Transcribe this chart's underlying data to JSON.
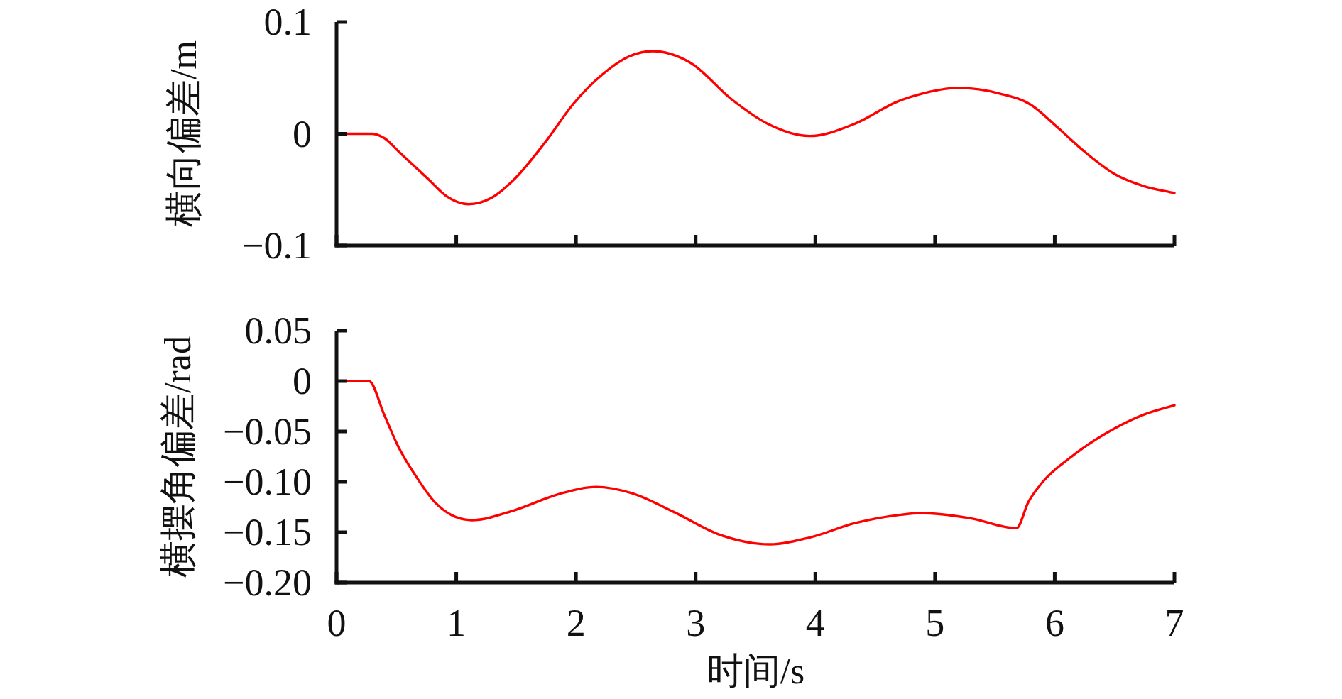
{
  "chart_data": [
    {
      "type": "line",
      "x": [
        0,
        0.3,
        0.4,
        0.52,
        0.77,
        0.92,
        1.1,
        1.3,
        1.5,
        1.74,
        1.98,
        2.22,
        2.44,
        2.64,
        2.95,
        3.31,
        3.6,
        3.95,
        4.33,
        4.69,
        4.86,
        5.2,
        5.54,
        5.8,
        6.02,
        6.26,
        6.5,
        6.75,
        7
      ],
      "series": [
        {
          "color": "#ff0000",
          "values": [
            0,
            0,
            -0.004,
            -0.016,
            -0.041,
            -0.056,
            -0.063,
            -0.057,
            -0.039,
            -0.008,
            0.027,
            0.053,
            0.069,
            0.074,
            0.064,
            0.03,
            0.009,
            -0.002,
            0.009,
            0.029,
            0.035,
            0.041,
            0.036,
            0.026,
            0.006,
            -0.017,
            -0.036,
            -0.047,
            -0.053
          ]
        }
      ],
      "ylabel": "横向偏差/m",
      "xlim": [
        0,
        7
      ],
      "ylim": [
        -0.1,
        0.1
      ],
      "xticks": [
        0,
        1,
        2,
        3,
        4,
        5,
        6,
        7
      ],
      "yticks": [
        {
          "value": -0.1,
          "label": "−0.1"
        },
        0,
        0.1
      ],
      "tick_labels": "y"
    },
    {
      "type": "line",
      "x": [
        0,
        0.27,
        0.4,
        0.52,
        0.65,
        0.82,
        0.96,
        1.13,
        1.49,
        1.86,
        2.17,
        2.46,
        2.82,
        3.19,
        3.62,
        3.96,
        4.33,
        4.69,
        4.88,
        5.29,
        5.68,
        5.78,
        5.9,
        6.14,
        6.5,
        6.75,
        7
      ],
      "series": [
        {
          "color": "#ff0000",
          "values": [
            0,
            0,
            -0.034,
            -0.066,
            -0.092,
            -0.12,
            -0.133,
            -0.138,
            -0.128,
            -0.112,
            -0.105,
            -0.111,
            -0.13,
            -0.152,
            -0.162,
            -0.155,
            -0.141,
            -0.133,
            -0.131,
            -0.136,
            -0.146,
            -0.12,
            -0.1,
            -0.075,
            -0.047,
            -0.033,
            -0.024
          ]
        }
      ],
      "xlabel": "时间/s",
      "ylabel": "横摆角偏差/rad",
      "xlim": [
        0,
        7
      ],
      "ylim": [
        -0.2,
        0.05
      ],
      "xticks": [
        0,
        1,
        2,
        3,
        4,
        5,
        6,
        7
      ],
      "yticks": [
        {
          "value": -0.2,
          "label": "−0.20"
        },
        {
          "value": -0.15,
          "label": "−0.15"
        },
        {
          "value": -0.1,
          "label": "−0.10"
        },
        {
          "value": -0.05,
          "label": "−0.05"
        },
        0,
        0.05
      ]
    }
  ]
}
